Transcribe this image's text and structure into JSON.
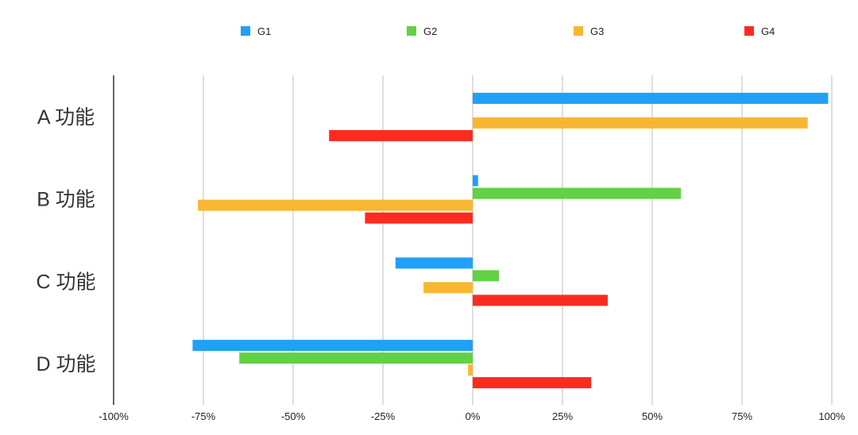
{
  "chart_data": {
    "type": "bar",
    "orientation": "horizontal",
    "title": "",
    "xlabel": "",
    "ylabel": "",
    "categories": [
      "A 功能",
      "B 功能",
      "C 功能",
      "D 功能"
    ],
    "series": [
      {
        "name": "G1",
        "color": "#1ea1f7",
        "values": [
          99,
          1.5,
          -21.5,
          -78
        ]
      },
      {
        "name": "G2",
        "color": "#62d145",
        "values": [
          0,
          58,
          7.3,
          -65
        ]
      },
      {
        "name": "G3",
        "color": "#f7b731",
        "values": [
          93.3,
          -76.5,
          -13.7,
          -1.3
        ]
      },
      {
        "name": "G4",
        "color": "#fb2b1f",
        "values": [
          -40,
          -30,
          37.6,
          33
        ]
      }
    ],
    "xlim": [
      -100,
      100
    ],
    "xticks": [
      -100,
      -75,
      -50,
      -25,
      0,
      25,
      50,
      75,
      100
    ],
    "xtick_labels": [
      "-100%",
      "-75%",
      "-50%",
      "-25%",
      "0%",
      "25%",
      "50%",
      "75%",
      "100%"
    ],
    "grid": true,
    "legend_position": "top"
  }
}
